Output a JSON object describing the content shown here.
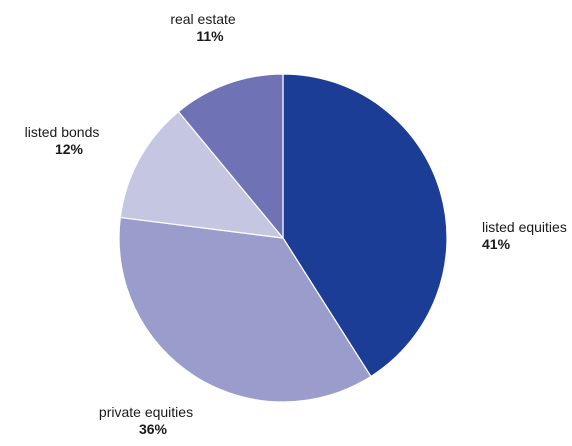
{
  "chart_data": {
    "type": "pie",
    "start_angle_deg": 0,
    "direction": "clockwise",
    "slices": [
      {
        "label": "listed equities",
        "value": 41,
        "value_label": "41%",
        "color": "#1c3d95"
      },
      {
        "label": "private equities",
        "value": 36,
        "value_label": "36%",
        "color": "#9a9ccb"
      },
      {
        "label": "listed bonds",
        "value": 12,
        "value_label": "12%",
        "color": "#c4c6e2"
      },
      {
        "label": "real estate",
        "value": 11,
        "value_label": "11%",
        "color": "#6f73b5"
      }
    ]
  }
}
